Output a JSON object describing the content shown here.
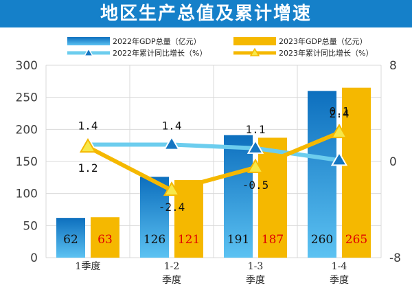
{
  "title": "地区生产总值及累计增速",
  "colors": {
    "title_bg": "#1580c9",
    "bar_2022": "#1e8fd6",
    "bar_2023": "#f5b800",
    "line_2022": "#6ccdee",
    "line_2023": "#f5b800",
    "label_2023": "#e00000"
  },
  "chart_data": {
    "type": "bar",
    "title": "地区生产总值及累计增速",
    "categories": [
      "1季度",
      "1-2季度",
      "1-3季度",
      "1-4季度"
    ],
    "category_lines": [
      [
        "1季度"
      ],
      [
        "1-2",
        "季度"
      ],
      [
        "1-3",
        "季度"
      ],
      [
        "1-4",
        "季度"
      ]
    ],
    "series": [
      {
        "name": "2022年GDP总量（亿元）",
        "type": "bar",
        "axis": "left",
        "values": [
          62,
          126,
          191,
          260
        ]
      },
      {
        "name": "2023年GDP总量（亿元）",
        "type": "bar",
        "axis": "left",
        "values": [
          63,
          121,
          187,
          265
        ]
      },
      {
        "name": "2022年累计同比增长（%）",
        "type": "line",
        "axis": "right",
        "values": [
          1.4,
          1.4,
          1.1,
          0.1
        ]
      },
      {
        "name": "2023年累计同比增长（%）",
        "type": "line",
        "axis": "right",
        "values": [
          1.2,
          -2.4,
          -0.5,
          2.4
        ]
      }
    ],
    "y_left": {
      "min": 0,
      "max": 300,
      "ticks": [
        0,
        50,
        100,
        150,
        200,
        250,
        300
      ]
    },
    "y_right": {
      "min": -8,
      "max": 8,
      "ticks": [
        -8,
        0,
        8
      ]
    },
    "grid": true,
    "legend_position": "top"
  }
}
